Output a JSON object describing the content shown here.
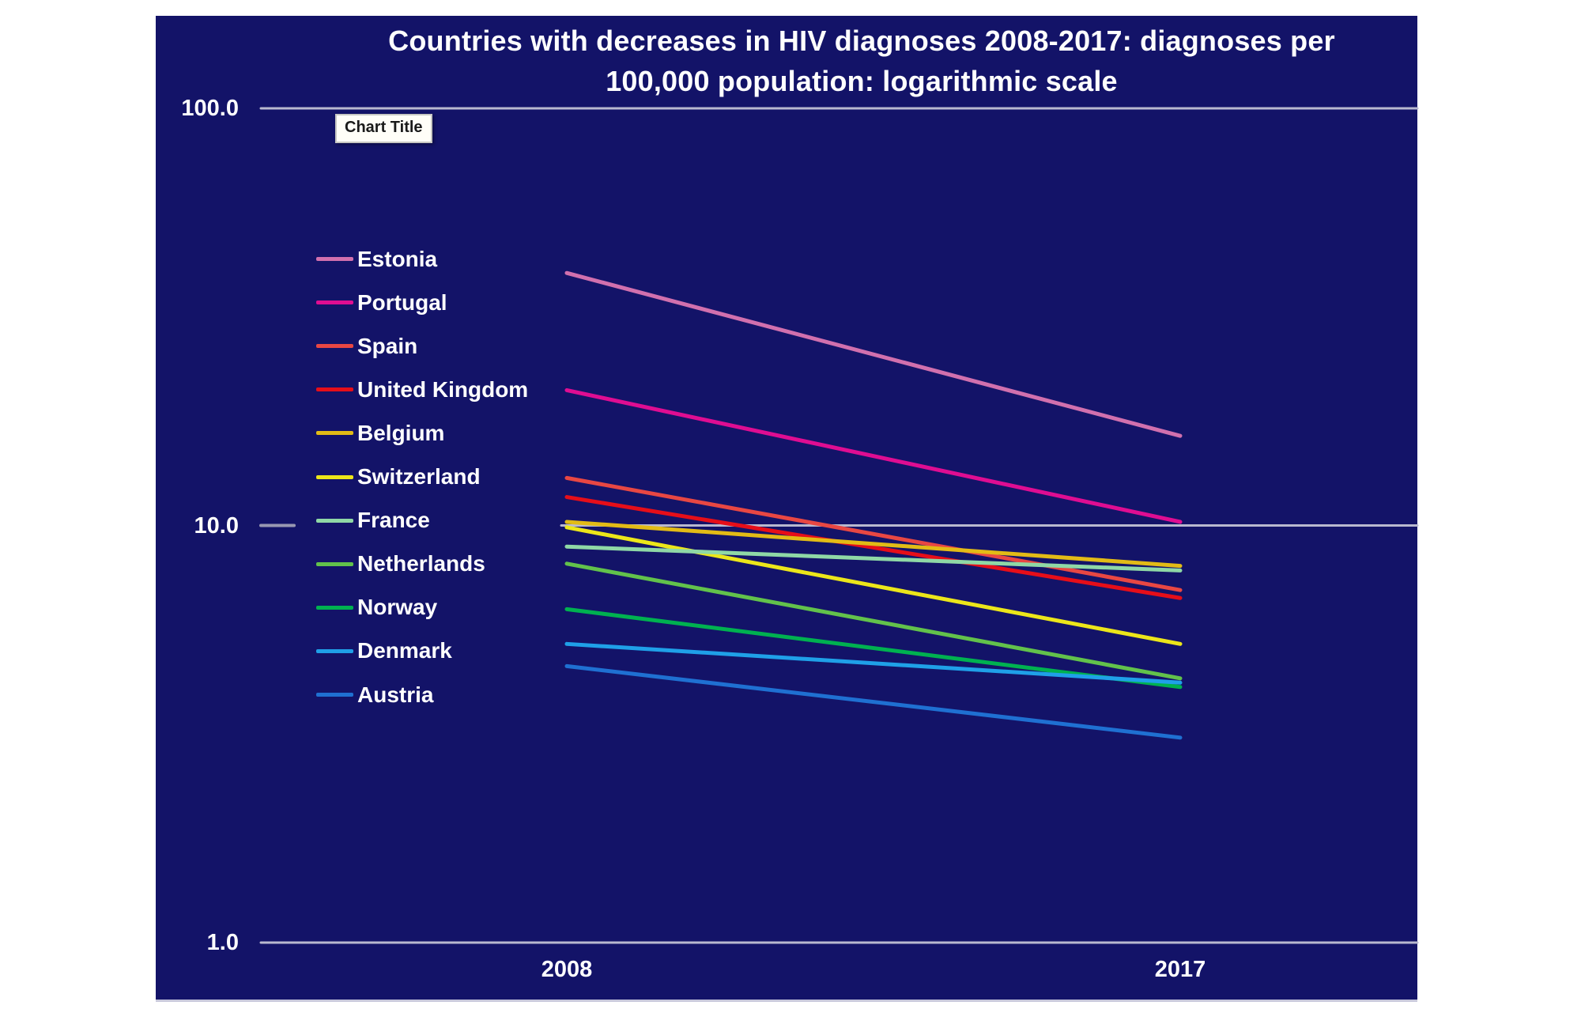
{
  "tooltip": {
    "label": "Chart Title"
  },
  "colors": {
    "page_background": "#ffffff",
    "chart_background": "#131368",
    "gridline": "#b9b9cf",
    "tick_dash": "#9898b2",
    "text": "#ffffff"
  },
  "chart_data": {
    "type": "line",
    "title": "Countries with decreases in HIV diagnoses 2008-2017: diagnoses per 100,000 population: logarithmic scale",
    "title_display": "Countries with decreases in HIV diagnoses 2008-2017: diagnoses per\n100,000 population: logarithmic scale",
    "xlabel": "",
    "ylabel": "",
    "x_categories": [
      "2008",
      "2017"
    ],
    "y_scale": "logarithmic",
    "ylim": [
      1,
      100
    ],
    "grid": true,
    "legend_position": "left",
    "y_ticks": [
      {
        "label": "100.0",
        "value": 100
      },
      {
        "label": "10.0",
        "value": 10
      },
      {
        "label": "1.0",
        "value": 1
      }
    ],
    "series": [
      {
        "name": "Estonia",
        "color": "#d170ae",
        "values": [
          40.3,
          16.4
        ]
      },
      {
        "name": "Portugal",
        "color": "#df0d92",
        "values": [
          21.1,
          10.2
        ]
      },
      {
        "name": "Spain",
        "color": "#e84743",
        "values": [
          13.0,
          7.0
        ]
      },
      {
        "name": "United Kingdom",
        "color": "#e60e19",
        "values": [
          11.7,
          6.7
        ]
      },
      {
        "name": "Belgium",
        "color": "#e2bb16",
        "values": [
          10.2,
          8.0
        ]
      },
      {
        "name": "Switzerland",
        "color": "#ece61a",
        "values": [
          9.9,
          5.2
        ]
      },
      {
        "name": "France",
        "color": "#8fd8a6",
        "values": [
          8.9,
          7.8
        ]
      },
      {
        "name": "Netherlands",
        "color": "#62c24b",
        "values": [
          8.1,
          4.3
        ]
      },
      {
        "name": "Norway",
        "color": "#00b150",
        "values": [
          6.3,
          4.1
        ]
      },
      {
        "name": "Denmark",
        "color": "#1fa0e8",
        "values": [
          5.2,
          4.2
        ]
      },
      {
        "name": "Austria",
        "color": "#1f70d2",
        "values": [
          4.6,
          3.1
        ]
      }
    ]
  }
}
